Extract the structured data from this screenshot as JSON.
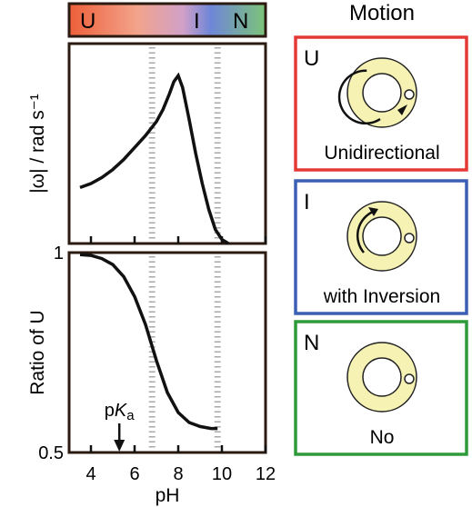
{
  "chart_data": [
    {
      "type": "line",
      "title": "",
      "xlabel": "",
      "ylabel": "|ω| / rad s⁻¹",
      "xlim": [
        3,
        12
      ],
      "ylim": [
        0,
        1.0
      ],
      "x_ticks": [
        4,
        6,
        8,
        10,
        12
      ],
      "y_ticks": [],
      "vlines": [
        6.8,
        9.8
      ],
      "series": [
        {
          "x": [
            3.5,
            4.0,
            4.5,
            5.0,
            5.5,
            6.0,
            6.5,
            7.0,
            7.3,
            7.6,
            7.8,
            8.0,
            8.2,
            8.5,
            8.8,
            9.1,
            9.4,
            9.7,
            10.0,
            10.3
          ],
          "y": [
            0.28,
            0.3,
            0.33,
            0.37,
            0.42,
            0.48,
            0.54,
            0.61,
            0.67,
            0.75,
            0.81,
            0.84,
            0.78,
            0.62,
            0.45,
            0.3,
            0.17,
            0.07,
            0.02,
            0.0
          ]
        }
      ]
    },
    {
      "type": "line",
      "title": "",
      "xlabel": "pH",
      "ylabel": "Ratio of U",
      "xlim": [
        3,
        12
      ],
      "ylim": [
        0.5,
        1.0
      ],
      "x_ticks": [
        4,
        6,
        8,
        10,
        12
      ],
      "y_ticks": [
        0.5,
        1
      ],
      "y_tick_labels": [
        "0.5",
        "1"
      ],
      "vlines": [
        6.8,
        9.8
      ],
      "annotation": {
        "text_main": "p",
        "text_italic": "K",
        "text_sub": "a",
        "x": 5.3
      },
      "series": [
        {
          "x": [
            3.5,
            4.0,
            4.5,
            5.0,
            5.5,
            6.0,
            6.5,
            7.0,
            7.5,
            8.0,
            8.5,
            9.0,
            9.5,
            9.8
          ],
          "y": [
            0.995,
            0.993,
            0.985,
            0.97,
            0.94,
            0.89,
            0.82,
            0.73,
            0.65,
            0.6,
            0.575,
            0.565,
            0.56,
            0.56
          ]
        }
      ]
    }
  ],
  "color_bar": {
    "labels": [
      "U",
      "I",
      "N"
    ],
    "gradient": [
      "#f0633c",
      "#f3a48c",
      "#6f7fd6",
      "#7fc47a"
    ]
  },
  "motion": {
    "title": "Motion",
    "panels": [
      {
        "letter": "U",
        "caption": "Unidirectional",
        "border": "#e53935",
        "arrow": "full"
      },
      {
        "letter": "I",
        "caption": "with Inversion",
        "border": "#3b5fb5",
        "arrow": "partial"
      },
      {
        "letter": "N",
        "caption": "No",
        "border": "#2e9a3a",
        "arrow": "none"
      }
    ]
  },
  "colors": {
    "ring_fill": "#f6f2b4",
    "ring_stroke": "#222222",
    "grid_dash": "#aaaaaa"
  }
}
